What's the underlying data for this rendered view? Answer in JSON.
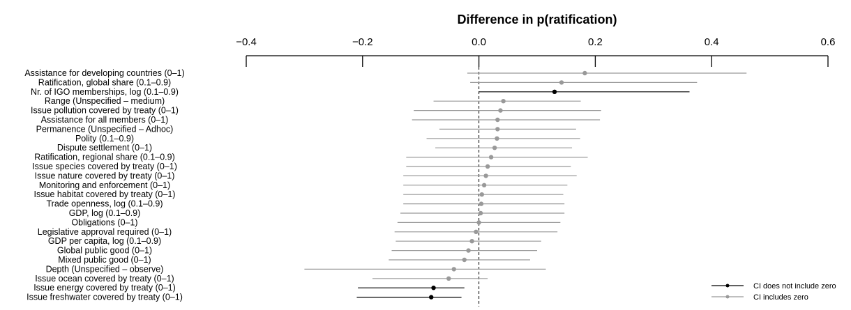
{
  "chart_data": {
    "type": "forest",
    "title": "Difference in p(ratification)",
    "xlim": [
      -0.4,
      0.6
    ],
    "x_ticks": [
      -0.4,
      -0.2,
      0.0,
      0.2,
      0.4,
      0.6
    ],
    "x_tick_labels": [
      "−0.4",
      "−0.2",
      "0.0",
      "0.2",
      "0.4",
      "0.6"
    ],
    "axis_position": "top",
    "reference_line": 0,
    "legend": {
      "position": "bottom-right",
      "entries": [
        {
          "label": "CI does not include zero",
          "color": "#000000",
          "significant": true
        },
        {
          "label": "CI includes zero",
          "color": "#999999",
          "significant": false
        }
      ]
    },
    "rows": [
      {
        "label": "Assistance for developing countries (0–1)",
        "estimate": 0.182,
        "lower": -0.02,
        "upper": 0.46,
        "significant": false
      },
      {
        "label": "Ratification, global share (0.1–0.9)",
        "estimate": 0.142,
        "lower": -0.015,
        "upper": 0.375,
        "significant": false
      },
      {
        "label": "Nr. of IGO memberships, log (0.1–0.9)",
        "estimate": 0.13,
        "lower": 0.0,
        "upper": 0.362,
        "significant": true
      },
      {
        "label": "Range (Unspecified – medium)",
        "estimate": 0.042,
        "lower": -0.078,
        "upper": 0.175,
        "significant": false
      },
      {
        "label": "Issue pollution covered by treaty (0–1)",
        "estimate": 0.037,
        "lower": -0.112,
        "upper": 0.21,
        "significant": false
      },
      {
        "label": "Assistance for all members (0–1)",
        "estimate": 0.032,
        "lower": -0.115,
        "upper": 0.208,
        "significant": false
      },
      {
        "label": "Permanence (Unspecified – Adhoc)",
        "estimate": 0.032,
        "lower": -0.068,
        "upper": 0.167,
        "significant": false
      },
      {
        "label": "Polity (0.1–0.9)",
        "estimate": 0.031,
        "lower": -0.09,
        "upper": 0.174,
        "significant": false
      },
      {
        "label": "Dispute settlement (0–1)",
        "estimate": 0.027,
        "lower": -0.075,
        "upper": 0.16,
        "significant": false
      },
      {
        "label": "Ratification, regional share (0.1–0.9)",
        "estimate": 0.021,
        "lower": -0.125,
        "upper": 0.187,
        "significant": false
      },
      {
        "label": "Issue species covered by treaty (0–1)",
        "estimate": 0.015,
        "lower": -0.125,
        "upper": 0.158,
        "significant": false
      },
      {
        "label": "Issue nature covered by treaty (0–1)",
        "estimate": 0.012,
        "lower": -0.13,
        "upper": 0.168,
        "significant": false
      },
      {
        "label": "Monitoring and enforcement (0–1)",
        "estimate": 0.009,
        "lower": -0.13,
        "upper": 0.152,
        "significant": false
      },
      {
        "label": "Issue habitat covered by treaty (0–1)",
        "estimate": 0.005,
        "lower": -0.13,
        "upper": 0.145,
        "significant": false
      },
      {
        "label": "Trade openness, log (0.1–0.9)",
        "estimate": 0.004,
        "lower": -0.13,
        "upper": 0.147,
        "significant": false
      },
      {
        "label": "GDP, log (0.1–0.9)",
        "estimate": 0.003,
        "lower": -0.135,
        "upper": 0.147,
        "significant": false
      },
      {
        "label": "Obligations (0–1)",
        "estimate": 0.0,
        "lower": -0.14,
        "upper": 0.14,
        "significant": false
      },
      {
        "label": "Legislative approval required (0–1)",
        "estimate": -0.005,
        "lower": -0.145,
        "upper": 0.135,
        "significant": false
      },
      {
        "label": "GDP per capita, log (0.1–0.9)",
        "estimate": -0.012,
        "lower": -0.143,
        "upper": 0.107,
        "significant": false
      },
      {
        "label": "Global public good (0–1)",
        "estimate": -0.018,
        "lower": -0.15,
        "upper": 0.1,
        "significant": false
      },
      {
        "label": "Mixed public good (0–1)",
        "estimate": -0.025,
        "lower": -0.155,
        "upper": 0.088,
        "significant": false
      },
      {
        "label": "Depth (Unspecified – observe)",
        "estimate": -0.043,
        "lower": -0.3,
        "upper": 0.115,
        "significant": false
      },
      {
        "label": "Issue ocean covered by treaty (0–1)",
        "estimate": -0.052,
        "lower": -0.183,
        "upper": 0.015,
        "significant": false
      },
      {
        "label": "Issue energy covered by treaty (0–1)",
        "estimate": -0.078,
        "lower": -0.208,
        "upper": -0.025,
        "significant": true
      },
      {
        "label": "Issue freshwater covered by treaty (0–1)",
        "estimate": -0.082,
        "lower": -0.21,
        "upper": -0.03,
        "significant": true
      }
    ]
  }
}
